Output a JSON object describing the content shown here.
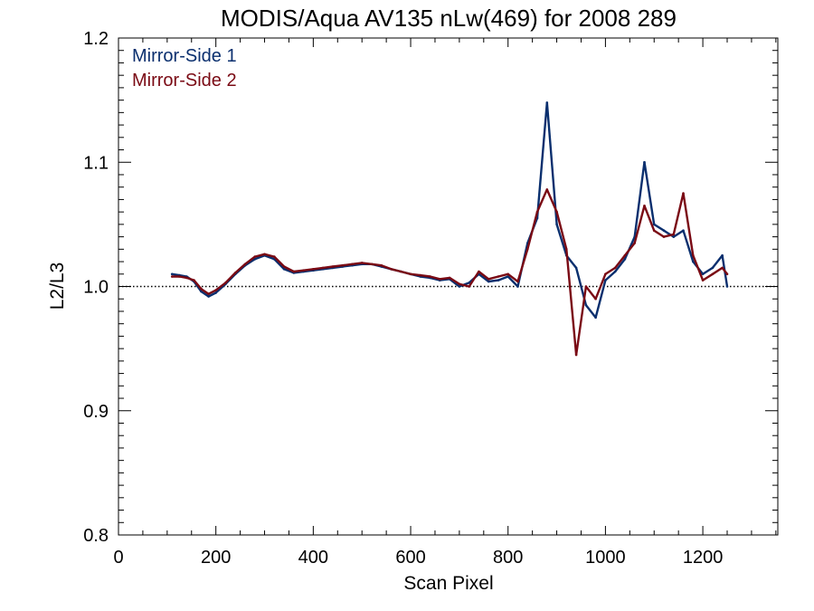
{
  "chart_data": {
    "type": "line",
    "title": "MODIS/Aqua AV135 nLw(469) for 2008 289",
    "xlabel": "Scan Pixel",
    "ylabel": "L2/L3",
    "xlim": [
      0,
      1354
    ],
    "ylim": [
      0.8,
      1.2
    ],
    "x_major_ticks": [
      0,
      200,
      400,
      600,
      800,
      1000,
      1200
    ],
    "x_tick_labels": [
      "0",
      "200",
      "400",
      "600",
      "800",
      "1000",
      "1200"
    ],
    "y_major_ticks": [
      0.8,
      0.9,
      1.0,
      1.1,
      1.2
    ],
    "y_tick_labels": [
      "0.8",
      "0.9",
      "1.0",
      "1.1",
      "1.2"
    ],
    "reference_line": 1.0,
    "legend_position": "top-left",
    "colors": {
      "mirror_side_1": "#0a2f6e",
      "mirror_side_2": "#7a0a14"
    },
    "series": [
      {
        "name": "Mirror-Side 1",
        "x": [
          110,
          125,
          140,
          155,
          170,
          185,
          200,
          220,
          240,
          260,
          280,
          300,
          320,
          340,
          360,
          380,
          400,
          420,
          440,
          460,
          480,
          500,
          520,
          540,
          560,
          580,
          600,
          620,
          640,
          660,
          680,
          700,
          720,
          740,
          760,
          780,
          800,
          820,
          840,
          860,
          880,
          900,
          920,
          940,
          960,
          980,
          1000,
          1020,
          1040,
          1060,
          1080,
          1100,
          1120,
          1140,
          1160,
          1180,
          1200,
          1220,
          1240,
          1250
        ],
        "values": [
          1.01,
          1.009,
          1.008,
          1.004,
          0.996,
          0.992,
          0.995,
          1.002,
          1.01,
          1.017,
          1.022,
          1.025,
          1.022,
          1.014,
          1.011,
          1.012,
          1.013,
          1.014,
          1.015,
          1.016,
          1.017,
          1.018,
          1.018,
          1.016,
          1.014,
          1.012,
          1.01,
          1.008,
          1.007,
          1.005,
          1.006,
          1.0,
          1.003,
          1.01,
          1.004,
          1.005,
          1.008,
          1.0,
          1.035,
          1.055,
          1.148,
          1.05,
          1.025,
          1.015,
          0.985,
          0.975,
          1.005,
          1.012,
          1.022,
          1.04,
          1.1,
          1.05,
          1.045,
          1.04,
          1.045,
          1.02,
          1.01,
          1.015,
          1.025,
          1.0
        ]
      },
      {
        "name": "Mirror-Side 2",
        "x": [
          110,
          125,
          140,
          155,
          170,
          185,
          200,
          220,
          240,
          260,
          280,
          300,
          320,
          340,
          360,
          380,
          400,
          420,
          440,
          460,
          480,
          500,
          520,
          540,
          560,
          580,
          600,
          620,
          640,
          660,
          680,
          700,
          720,
          740,
          760,
          780,
          800,
          820,
          840,
          860,
          880,
          900,
          920,
          940,
          960,
          980,
          1000,
          1020,
          1040,
          1060,
          1080,
          1100,
          1120,
          1140,
          1160,
          1180,
          1200,
          1220,
          1240,
          1250
        ],
        "values": [
          1.008,
          1.008,
          1.007,
          1.005,
          0.998,
          0.994,
          0.997,
          1.003,
          1.011,
          1.018,
          1.024,
          1.026,
          1.024,
          1.016,
          1.012,
          1.013,
          1.014,
          1.015,
          1.016,
          1.017,
          1.018,
          1.019,
          1.018,
          1.017,
          1.014,
          1.012,
          1.01,
          1.009,
          1.008,
          1.006,
          1.007,
          1.002,
          1.0,
          1.012,
          1.006,
          1.008,
          1.01,
          1.004,
          1.03,
          1.06,
          1.078,
          1.06,
          1.03,
          0.945,
          1.0,
          0.99,
          1.01,
          1.015,
          1.025,
          1.035,
          1.065,
          1.045,
          1.04,
          1.042,
          1.075,
          1.025,
          1.005,
          1.01,
          1.015,
          1.01
        ]
      }
    ]
  }
}
